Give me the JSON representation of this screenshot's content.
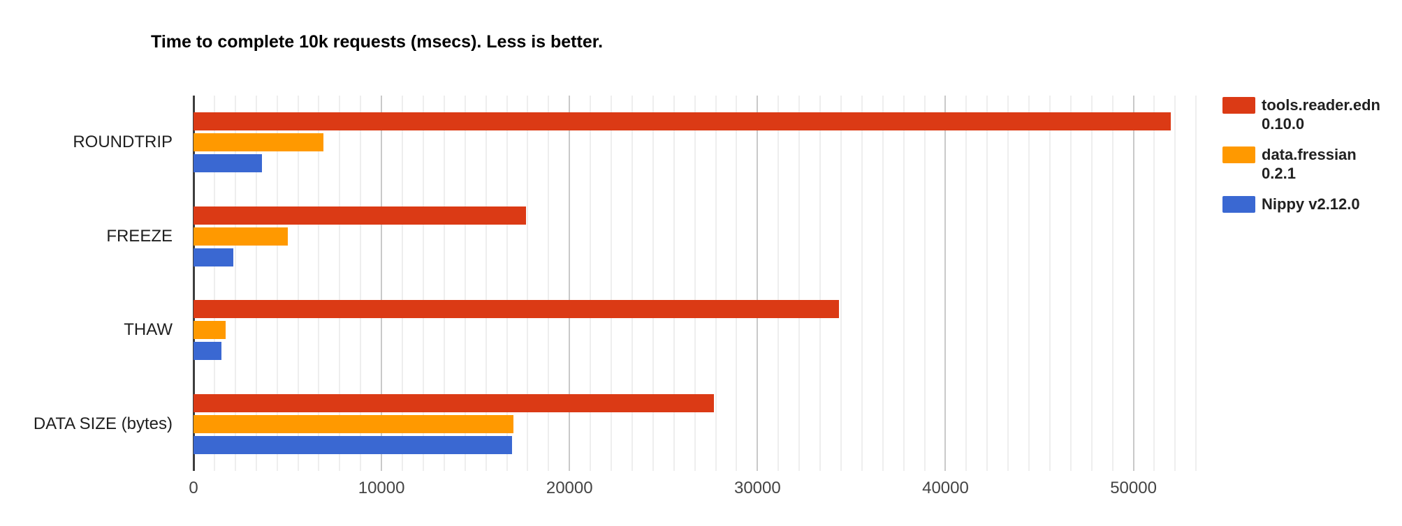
{
  "title": "Time to complete 10k requests (msecs). Less is better.",
  "chart_data": {
    "type": "bar",
    "orientation": "horizontal",
    "title": "Time to complete 10k requests (msecs). Less is better.",
    "categories": [
      "ROUNDTRIP",
      "FREEZE",
      "THAW",
      "DATA SIZE (bytes)"
    ],
    "series": [
      {
        "name": "tools.reader.edn 0.10.0",
        "color": "#db3a15",
        "values": [
          52000,
          17700,
          34350,
          27700
        ]
      },
      {
        "name": "data.fressian 0.2.1",
        "color": "#ff9900",
        "values": [
          6900,
          5000,
          1700,
          17000
        ]
      },
      {
        "name": "Nippy v2.12.0",
        "color": "#3a68d2",
        "values": [
          3650,
          2100,
          1500,
          16950
        ]
      }
    ],
    "x_ticks": [
      0,
      10000,
      20000,
      30000,
      40000,
      50000
    ],
    "xlim": [
      0,
      54400
    ],
    "xlabel": "",
    "ylabel": "",
    "grid": true,
    "minor_gridlines_per_major": 9,
    "legend_position": "right"
  },
  "style": {
    "axis_line_color": "#3d3d3d",
    "major_gridline_color": "#c9c9c9",
    "minor_gridline_color": "#eeeeee",
    "tick_label_color": "#444444",
    "category_label_color": "#1f1f1f",
    "legend_text_color": "#212121"
  }
}
